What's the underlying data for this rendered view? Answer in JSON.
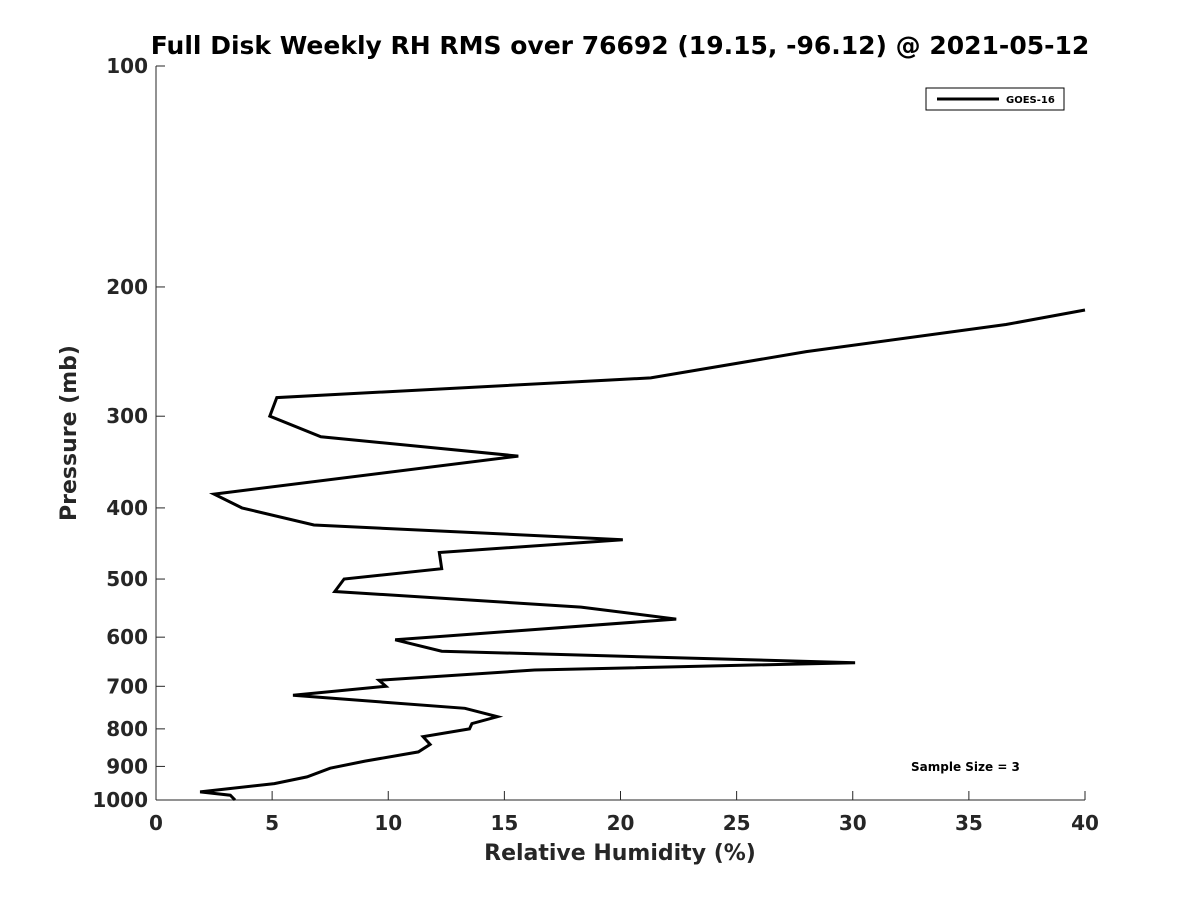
{
  "chart_data": {
    "type": "line",
    "title": "Full Disk Weekly RH RMS over 76692 (19.15, -96.12) @ 2021-05-12",
    "xlabel": "Relative Humidity (%)",
    "ylabel": "Pressure (mb)",
    "xlim": [
      0,
      40
    ],
    "ylim": [
      100,
      1000
    ],
    "y_scale": "log",
    "y_reversed": true,
    "grid": false,
    "legend_position": "top-right",
    "x_ticks": [
      "0",
      "5",
      "10",
      "15",
      "20",
      "25",
      "30",
      "35",
      "40"
    ],
    "y_ticks": [
      {
        "value": 100,
        "label": "100"
      },
      {
        "value": 200,
        "label": "200"
      },
      {
        "value": 300,
        "label": "300"
      },
      {
        "value": 400,
        "label": "400"
      },
      {
        "value": 500,
        "label": "500"
      },
      {
        "value": 600,
        "label": "600"
      },
      {
        "value": 700,
        "label": "700"
      },
      {
        "value": 800,
        "label": "800"
      },
      {
        "value": 900,
        "label": "900"
      },
      {
        "value": 1000,
        "label": "1000"
      }
    ],
    "series": [
      {
        "name": "GOES-16",
        "color": "#000000",
        "points": [
          {
            "x": 40.0,
            "y": 215
          },
          {
            "x": 36.6,
            "y": 225
          },
          {
            "x": 28.0,
            "y": 245
          },
          {
            "x": 21.3,
            "y": 266
          },
          {
            "x": 5.2,
            "y": 283
          },
          {
            "x": 4.9,
            "y": 300
          },
          {
            "x": 7.1,
            "y": 320
          },
          {
            "x": 15.6,
            "y": 340
          },
          {
            "x": 2.5,
            "y": 383
          },
          {
            "x": 3.7,
            "y": 400
          },
          {
            "x": 6.8,
            "y": 422
          },
          {
            "x": 20.1,
            "y": 442
          },
          {
            "x": 12.2,
            "y": 460
          },
          {
            "x": 12.3,
            "y": 484
          },
          {
            "x": 8.1,
            "y": 500
          },
          {
            "x": 7.7,
            "y": 520
          },
          {
            "x": 18.3,
            "y": 546
          },
          {
            "x": 22.4,
            "y": 567
          },
          {
            "x": 10.3,
            "y": 605
          },
          {
            "x": 12.3,
            "y": 627
          },
          {
            "x": 30.1,
            "y": 650
          },
          {
            "x": 16.3,
            "y": 665
          },
          {
            "x": 9.6,
            "y": 687
          },
          {
            "x": 9.9,
            "y": 700
          },
          {
            "x": 5.9,
            "y": 720
          },
          {
            "x": 13.3,
            "y": 750
          },
          {
            "x": 14.7,
            "y": 770
          },
          {
            "x": 13.6,
            "y": 787
          },
          {
            "x": 13.5,
            "y": 800
          },
          {
            "x": 11.5,
            "y": 820
          },
          {
            "x": 11.8,
            "y": 840
          },
          {
            "x": 11.3,
            "y": 860
          },
          {
            "x": 9.0,
            "y": 885
          },
          {
            "x": 7.5,
            "y": 905
          },
          {
            "x": 6.5,
            "y": 930
          },
          {
            "x": 5.1,
            "y": 950
          },
          {
            "x": 1.9,
            "y": 975
          },
          {
            "x": 3.2,
            "y": 985
          },
          {
            "x": 3.4,
            "y": 1000
          }
        ]
      }
    ],
    "annotations": [
      {
        "text": "Sample Size = 3"
      }
    ]
  }
}
